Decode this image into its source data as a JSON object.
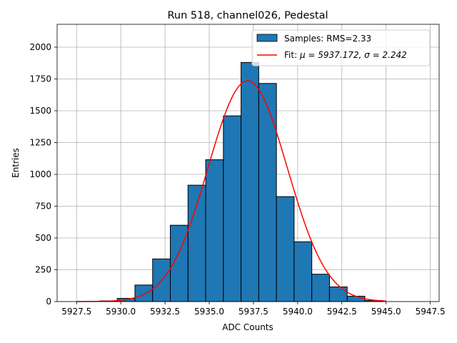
{
  "chart_data": {
    "type": "bar",
    "title": "Run 518, channel026, Pedestal",
    "xlabel": "ADC Counts",
    "ylabel": "Entries",
    "xlim": [
      5926.4,
      5948.0
    ],
    "ylim": [
      0,
      2180
    ],
    "xticks": [
      5927.5,
      5930.0,
      5932.5,
      5935.0,
      5937.5,
      5940.0,
      5942.5,
      5945.0,
      5947.5
    ],
    "xtick_labels": [
      "5927.5",
      "5930.0",
      "5932.5",
      "5935.0",
      "5937.5",
      "5940.0",
      "5942.5",
      "5945.0",
      "5947.5"
    ],
    "yticks": [
      0,
      250,
      500,
      750,
      1000,
      1250,
      1500,
      1750,
      2000
    ],
    "ytick_labels": [
      "0",
      "250",
      "500",
      "750",
      "1000",
      "1250",
      "1500",
      "1750",
      "2000"
    ],
    "grid": true,
    "legend_position": "top-right",
    "bar_color": "#1f77b4",
    "fit_color": "#ff0000",
    "histogram": {
      "name": "Samples: RMS=2.33",
      "bin_edges": [
        5928.8,
        5929.8,
        5930.8,
        5931.8,
        5932.8,
        5933.8,
        5934.8,
        5935.8,
        5936.8,
        5937.8,
        5938.8,
        5939.8,
        5940.8,
        5941.8,
        5942.8,
        5943.8,
        5944.8
      ],
      "counts": [
        5,
        25,
        130,
        335,
        600,
        915,
        1115,
        1460,
        1880,
        1715,
        825,
        470,
        215,
        115,
        42,
        8
      ]
    },
    "fit": {
      "name_prefix": "Fit: ",
      "name_math": "μ = 5937.172, σ = 2.242",
      "mu": 5937.172,
      "sigma": 2.242,
      "amplitude": 1735,
      "x_range": [
        5927.5,
        5945.0
      ]
    }
  }
}
